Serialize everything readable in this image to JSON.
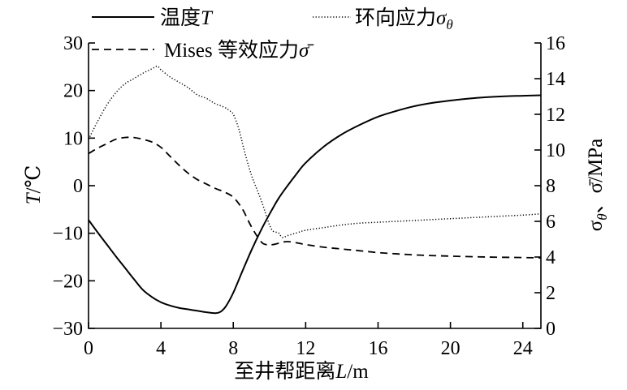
{
  "chart_data": {
    "type": "line",
    "xlabel": {
      "text": "至井帮距离",
      "symbol": "L",
      "unit": "/m"
    },
    "ylabel_left": {
      "symbol": "T",
      "unit": "/℃"
    },
    "ylabel_right": {
      "symbol1": "σ",
      "sub1": "θ",
      "sep": "、",
      "symbol2": "σ̄",
      "unit": "/MPa"
    },
    "x_axis": {
      "min": 0,
      "max": 25,
      "ticks": [
        {
          "value": 0,
          "label": "0"
        },
        {
          "value": 4,
          "label": "4"
        },
        {
          "value": 8,
          "label": "8"
        },
        {
          "value": 12,
          "label": "12"
        },
        {
          "value": 16,
          "label": "16"
        },
        {
          "value": 20,
          "label": "20"
        },
        {
          "value": 24,
          "label": "24"
        }
      ]
    },
    "y_left_axis": {
      "min": -30,
      "max": 30,
      "ticks": [
        {
          "value": -30,
          "label": "−30"
        },
        {
          "value": -20,
          "label": "−20"
        },
        {
          "value": -10,
          "label": "−10"
        },
        {
          "value": 0,
          "label": "0"
        },
        {
          "value": 10,
          "label": "10"
        },
        {
          "value": 20,
          "label": "20"
        },
        {
          "value": 30,
          "label": "30"
        }
      ]
    },
    "y_right_axis": {
      "min": 0,
      "max": 16,
      "ticks": [
        {
          "value": 0,
          "label": "0"
        },
        {
          "value": 2,
          "label": "2"
        },
        {
          "value": 4,
          "label": "4"
        },
        {
          "value": 6,
          "label": "6"
        },
        {
          "value": 8,
          "label": "8"
        },
        {
          "value": 10,
          "label": "10"
        },
        {
          "value": 12,
          "label": "12"
        },
        {
          "value": 14,
          "label": "14"
        },
        {
          "value": 16,
          "label": "16"
        }
      ]
    },
    "grid": false,
    "legend_position": "top",
    "series": [
      {
        "name": "温度",
        "symbol": "T",
        "axis": "left",
        "line_style": "solid",
        "color": "#000000",
        "x": [
          0,
          0.5,
          1,
          1.5,
          2,
          2.5,
          3,
          3.5,
          4,
          4.5,
          5,
          5.5,
          6,
          6.5,
          7,
          7.3,
          7.6,
          8,
          8.5,
          9,
          9.5,
          10,
          10.5,
          11,
          11.5,
          12,
          13,
          14,
          15,
          16,
          17,
          18,
          19,
          20,
          21,
          22,
          23,
          24,
          25
        ],
        "y": [
          -7.2,
          -9.8,
          -12.3,
          -14.8,
          -17.2,
          -19.6,
          -21.9,
          -23.4,
          -24.5,
          -25.2,
          -25.7,
          -26.0,
          -26.3,
          -26.6,
          -26.8,
          -26.5,
          -25.3,
          -22.5,
          -18.0,
          -13.6,
          -9.6,
          -6.0,
          -2.7,
          0.0,
          2.5,
          4.8,
          8.2,
          10.8,
          12.8,
          14.5,
          15.7,
          16.7,
          17.4,
          17.9,
          18.3,
          18.6,
          18.8,
          18.9,
          19.0
        ]
      },
      {
        "name": "环向应力",
        "symbol": "σ",
        "symbol_sub": "θ",
        "axis": "right",
        "line_style": "dotted",
        "color": "#000000",
        "x": [
          0,
          0.5,
          1,
          1.5,
          2,
          2.5,
          3,
          3.5,
          3.8,
          4,
          4.5,
          5,
          5.5,
          6,
          6.5,
          7,
          7.5,
          7.8,
          8,
          8.3,
          8.6,
          9,
          9.5,
          9.8,
          10,
          10.2,
          10.5,
          10.7,
          11,
          11.5,
          12,
          13,
          14,
          15,
          16,
          17,
          18,
          19,
          20,
          21,
          22,
          23,
          24,
          25
        ],
        "y": [
          10.6,
          11.6,
          12.5,
          13.2,
          13.7,
          14.0,
          14.3,
          14.55,
          14.7,
          14.5,
          14.1,
          13.8,
          13.5,
          13.1,
          12.9,
          12.6,
          12.4,
          12.2,
          12.0,
          11.2,
          10.0,
          8.6,
          7.3,
          6.4,
          5.8,
          5.45,
          5.35,
          5.1,
          5.2,
          5.35,
          5.5,
          5.65,
          5.8,
          5.9,
          5.95,
          6.0,
          6.05,
          6.1,
          6.15,
          6.2,
          6.25,
          6.3,
          6.35,
          6.42
        ]
      },
      {
        "name": "Mises 等效应力",
        "symbol": "σ̄",
        "axis": "right",
        "line_style": "dashed",
        "color": "#000000",
        "x": [
          0,
          0.5,
          1,
          1.5,
          2,
          2.5,
          3,
          3.5,
          4,
          4.5,
          5,
          5.5,
          6,
          6.5,
          7,
          7.5,
          8,
          8.5,
          9,
          9.5,
          9.8,
          10.2,
          10.8,
          11.2,
          12,
          13,
          14,
          15,
          16,
          17,
          18,
          19,
          20,
          22,
          24,
          25
        ],
        "y": [
          9.8,
          10.1,
          10.35,
          10.6,
          10.7,
          10.7,
          10.6,
          10.45,
          10.15,
          9.65,
          9.15,
          8.7,
          8.35,
          8.1,
          7.85,
          7.65,
          7.35,
          6.7,
          5.7,
          4.9,
          4.7,
          4.7,
          4.85,
          4.85,
          4.7,
          4.55,
          4.45,
          4.35,
          4.25,
          4.18,
          4.12,
          4.08,
          4.05,
          4.0,
          3.97,
          3.95
        ]
      }
    ]
  }
}
